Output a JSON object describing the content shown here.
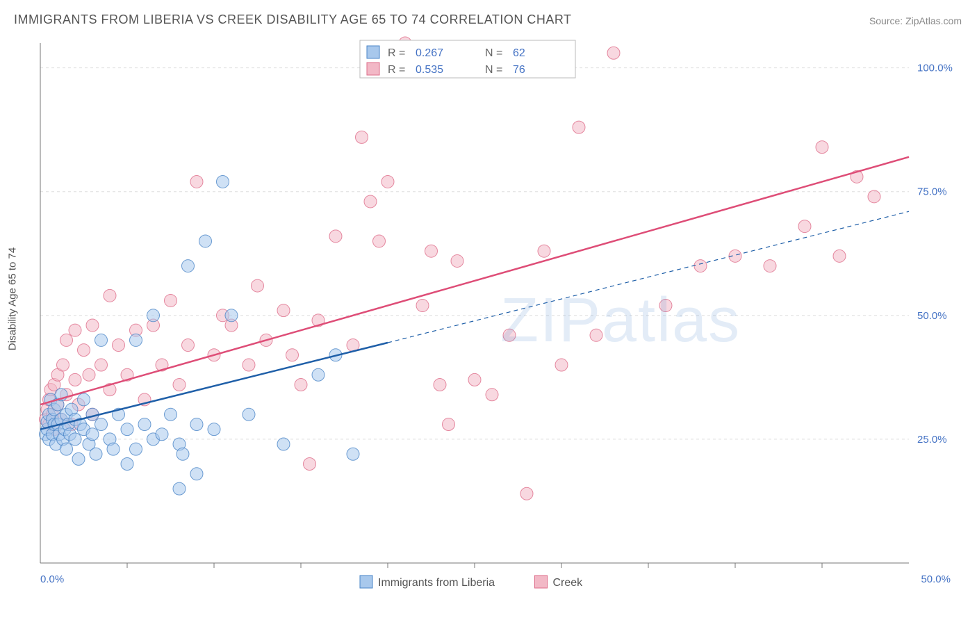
{
  "title": "IMMIGRANTS FROM LIBERIA VS CREEK DISABILITY AGE 65 TO 74 CORRELATION CHART",
  "source_prefix": "Source: ",
  "source_name": "ZipAtlas.com",
  "ylabel": "Disability Age 65 to 74",
  "watermark": "ZIPatlas",
  "chart": {
    "type": "scatter",
    "plot_bg": "#ffffff",
    "border_color": "#777777",
    "grid_color": "#dddddd",
    "grid_dash": "4,4",
    "tick_color": "#4472c4",
    "tick_fontsize": 15,
    "axis_label_color": "#555555",
    "axis_label_fontsize": 15,
    "xlim": [
      0,
      50
    ],
    "ylim": [
      0,
      105
    ],
    "xticks": [
      0,
      50
    ],
    "xtick_labels": [
      "0.0%",
      "50.0%"
    ],
    "xminor": [
      5,
      10,
      15,
      20,
      25,
      30,
      35,
      40,
      45
    ],
    "yticks": [
      25,
      50,
      75,
      100
    ],
    "ytick_labels": [
      "25.0%",
      "50.0%",
      "75.0%",
      "100.0%"
    ],
    "marker_radius": 9,
    "marker_opacity": 0.55,
    "marker_stroke_width": 1,
    "series": [
      {
        "name": "Immigrants from Liberia",
        "fill": "#a8c8ec",
        "stroke": "#4a85c7",
        "trend_color": "#1f5fa8",
        "trend_width": 2.5,
        "trend_solid": [
          [
            0,
            27
          ],
          [
            20,
            44.5
          ]
        ],
        "trend_dash": [
          [
            20,
            44.5
          ],
          [
            50,
            71
          ]
        ],
        "R": "0.267",
        "N": "62",
        "points": [
          [
            0.3,
            26
          ],
          [
            0.4,
            27
          ],
          [
            0.4,
            28.5
          ],
          [
            0.5,
            30
          ],
          [
            0.5,
            25
          ],
          [
            0.6,
            33
          ],
          [
            0.7,
            26
          ],
          [
            0.7,
            29
          ],
          [
            0.8,
            28
          ],
          [
            0.8,
            31
          ],
          [
            0.9,
            24
          ],
          [
            1.0,
            28
          ],
          [
            1.0,
            32
          ],
          [
            1.1,
            26
          ],
          [
            1.2,
            29
          ],
          [
            1.2,
            34
          ],
          [
            1.3,
            25
          ],
          [
            1.4,
            27
          ],
          [
            1.5,
            30
          ],
          [
            1.5,
            23
          ],
          [
            1.6,
            28
          ],
          [
            1.7,
            26
          ],
          [
            1.8,
            31
          ],
          [
            2.0,
            25
          ],
          [
            2.0,
            29
          ],
          [
            2.2,
            21
          ],
          [
            2.3,
            28
          ],
          [
            2.5,
            27
          ],
          [
            2.5,
            33
          ],
          [
            2.8,
            24
          ],
          [
            3.0,
            30
          ],
          [
            3.0,
            26
          ],
          [
            3.2,
            22
          ],
          [
            3.5,
            28
          ],
          [
            3.5,
            45
          ],
          [
            4.0,
            25
          ],
          [
            4.2,
            23
          ],
          [
            4.5,
            30
          ],
          [
            5.0,
            27
          ],
          [
            5.0,
            20
          ],
          [
            5.5,
            23
          ],
          [
            5.5,
            45
          ],
          [
            6.0,
            28
          ],
          [
            6.5,
            25
          ],
          [
            6.5,
            50
          ],
          [
            7.0,
            26
          ],
          [
            7.5,
            30
          ],
          [
            8.0,
            24
          ],
          [
            8.0,
            15
          ],
          [
            8.2,
            22
          ],
          [
            8.5,
            60
          ],
          [
            9.0,
            28
          ],
          [
            9.0,
            18
          ],
          [
            9.5,
            65
          ],
          [
            10.0,
            27
          ],
          [
            10.5,
            77
          ],
          [
            11.0,
            50
          ],
          [
            12.0,
            30
          ],
          [
            14.0,
            24
          ],
          [
            16.0,
            38
          ],
          [
            17.0,
            42
          ],
          [
            18.0,
            22
          ]
        ]
      },
      {
        "name": "Creek",
        "fill": "#f2b8c6",
        "stroke": "#de6d8a",
        "trend_color": "#de4d77",
        "trend_width": 2.5,
        "trend_solid": [
          [
            0,
            32
          ],
          [
            50,
            82
          ]
        ],
        "trend_dash": null,
        "R": "0.535",
        "N": "76",
        "points": [
          [
            0.3,
            29
          ],
          [
            0.4,
            31
          ],
          [
            0.5,
            28
          ],
          [
            0.5,
            33
          ],
          [
            0.6,
            35
          ],
          [
            0.7,
            30
          ],
          [
            0.8,
            27
          ],
          [
            0.8,
            36
          ],
          [
            1.0,
            32
          ],
          [
            1.0,
            38
          ],
          [
            1.2,
            29
          ],
          [
            1.3,
            40
          ],
          [
            1.5,
            34
          ],
          [
            1.5,
            45
          ],
          [
            1.8,
            28
          ],
          [
            2.0,
            37
          ],
          [
            2.0,
            47
          ],
          [
            2.2,
            32
          ],
          [
            2.5,
            43
          ],
          [
            2.8,
            38
          ],
          [
            3.0,
            30
          ],
          [
            3.0,
            48
          ],
          [
            3.5,
            40
          ],
          [
            4.0,
            35
          ],
          [
            4.0,
            54
          ],
          [
            4.5,
            44
          ],
          [
            5.0,
            38
          ],
          [
            5.5,
            47
          ],
          [
            6.0,
            33
          ],
          [
            6.5,
            48
          ],
          [
            7.0,
            40
          ],
          [
            7.5,
            53
          ],
          [
            8.0,
            36
          ],
          [
            8.5,
            44
          ],
          [
            9.0,
            77
          ],
          [
            10.0,
            42
          ],
          [
            10.5,
            50
          ],
          [
            11.0,
            48
          ],
          [
            12.0,
            40
          ],
          [
            12.5,
            56
          ],
          [
            13.0,
            45
          ],
          [
            14.0,
            51
          ],
          [
            14.5,
            42
          ],
          [
            15.0,
            36
          ],
          [
            15.5,
            20
          ],
          [
            16.0,
            49
          ],
          [
            17.0,
            66
          ],
          [
            18.0,
            44
          ],
          [
            18.5,
            86
          ],
          [
            19.0,
            73
          ],
          [
            19.5,
            65
          ],
          [
            20.0,
            77
          ],
          [
            21.0,
            105
          ],
          [
            22.0,
            52
          ],
          [
            22.5,
            63
          ],
          [
            23.0,
            36
          ],
          [
            23.5,
            28
          ],
          [
            24.0,
            61
          ],
          [
            25.0,
            37
          ],
          [
            26.0,
            34
          ],
          [
            27.0,
            46
          ],
          [
            28.0,
            14
          ],
          [
            29.0,
            63
          ],
          [
            30.0,
            40
          ],
          [
            31.0,
            88
          ],
          [
            32.0,
            46
          ],
          [
            33.0,
            103
          ],
          [
            36.0,
            52
          ],
          [
            38.0,
            60
          ],
          [
            40.0,
            62
          ],
          [
            42.0,
            60
          ],
          [
            44.0,
            68
          ],
          [
            45.0,
            84
          ],
          [
            46.0,
            62
          ],
          [
            47.0,
            78
          ],
          [
            48.0,
            74
          ]
        ]
      }
    ],
    "legend_top": {
      "border": "#bbbbbb",
      "bg": "#ffffff",
      "label_color": "#666666",
      "value_color": "#4472c4",
      "fontsize": 16
    },
    "legend_bottom": {
      "label_color": "#555555",
      "fontsize": 16
    }
  }
}
